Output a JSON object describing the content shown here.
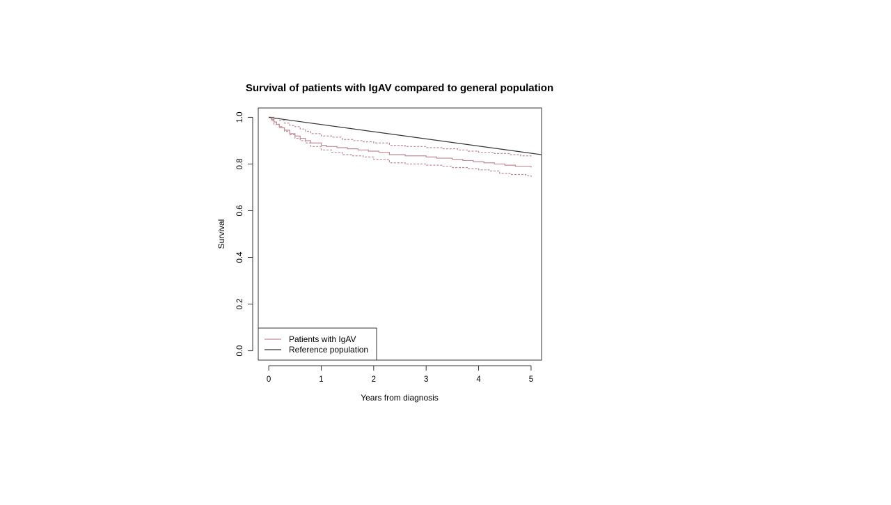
{
  "chart_data": {
    "type": "line",
    "title": "Survival of patients with IgAV compared to general population",
    "xlabel": "Years from diagnosis",
    "ylabel": "Survival",
    "xlim": [
      -0.2,
      5.2
    ],
    "ylim": [
      -0.04,
      1.04
    ],
    "xticks": [
      0,
      1,
      2,
      3,
      4,
      5
    ],
    "xtick_labels": [
      "0",
      "1",
      "2",
      "3",
      "4",
      "5"
    ],
    "yticks": [
      0.0,
      0.2,
      0.4,
      0.6,
      0.8,
      1.0
    ],
    "ytick_labels": [
      "0.0",
      "0.2",
      "0.4",
      "0.6",
      "0.8",
      "1.0"
    ],
    "grid": false,
    "legend_position": "bottom-left",
    "series": [
      {
        "name": "Patients with IgAV",
        "color": "#c08a97",
        "style": "step",
        "x": [
          0,
          0.05,
          0.1,
          0.15,
          0.2,
          0.25,
          0.3,
          0.4,
          0.5,
          0.6,
          0.7,
          0.8,
          1.0,
          1.1,
          1.3,
          1.5,
          1.7,
          1.9,
          2.1,
          2.3,
          2.6,
          3.0,
          3.2,
          3.5,
          3.7,
          3.9,
          4.1,
          4.3,
          4.5,
          4.7,
          5.0
        ],
        "y": [
          1.0,
          0.99,
          0.98,
          0.97,
          0.96,
          0.955,
          0.945,
          0.93,
          0.92,
          0.91,
          0.9,
          0.89,
          0.88,
          0.875,
          0.87,
          0.865,
          0.86,
          0.855,
          0.85,
          0.84,
          0.835,
          0.83,
          0.825,
          0.82,
          0.815,
          0.81,
          0.805,
          0.8,
          0.795,
          0.79,
          0.785
        ]
      },
      {
        "name": "Patients with IgAV upper 95% CI",
        "color": "#c08a97",
        "style": "step-dashed",
        "x": [
          0,
          0.1,
          0.2,
          0.3,
          0.4,
          0.5,
          0.6,
          0.7,
          0.8,
          1.0,
          1.2,
          1.4,
          1.6,
          1.8,
          2.0,
          2.3,
          2.6,
          3.0,
          3.3,
          3.6,
          3.8,
          4.0,
          4.3,
          4.6,
          4.8,
          5.0
        ],
        "y": [
          1.0,
          0.995,
          0.985,
          0.975,
          0.965,
          0.96,
          0.95,
          0.94,
          0.93,
          0.92,
          0.915,
          0.905,
          0.9,
          0.895,
          0.89,
          0.88,
          0.875,
          0.87,
          0.865,
          0.86,
          0.855,
          0.85,
          0.845,
          0.84,
          0.835,
          0.83
        ]
      },
      {
        "name": "Patients with IgAV lower 95% CI",
        "color": "#c08a97",
        "style": "step-dashed",
        "x": [
          0,
          0.05,
          0.1,
          0.2,
          0.3,
          0.4,
          0.5,
          0.6,
          0.7,
          0.8,
          1.0,
          1.2,
          1.4,
          1.6,
          1.8,
          2.0,
          2.3,
          2.6,
          3.0,
          3.3,
          3.5,
          3.8,
          4.0,
          4.2,
          4.4,
          4.6,
          4.9,
          5.0
        ],
        "y": [
          1.0,
          0.985,
          0.97,
          0.955,
          0.94,
          0.925,
          0.91,
          0.9,
          0.89,
          0.875,
          0.86,
          0.85,
          0.84,
          0.835,
          0.83,
          0.82,
          0.805,
          0.8,
          0.795,
          0.79,
          0.785,
          0.78,
          0.775,
          0.77,
          0.76,
          0.755,
          0.75,
          0.745
        ]
      },
      {
        "name": "Reference population",
        "color": "#333333",
        "style": "solid",
        "x": [
          0,
          5.2
        ],
        "y": [
          1.0,
          0.84
        ]
      }
    ],
    "legend": [
      {
        "label": "Patients with IgAV",
        "color": "#c08a97"
      },
      {
        "label": "Reference population",
        "color": "#333333"
      }
    ]
  }
}
